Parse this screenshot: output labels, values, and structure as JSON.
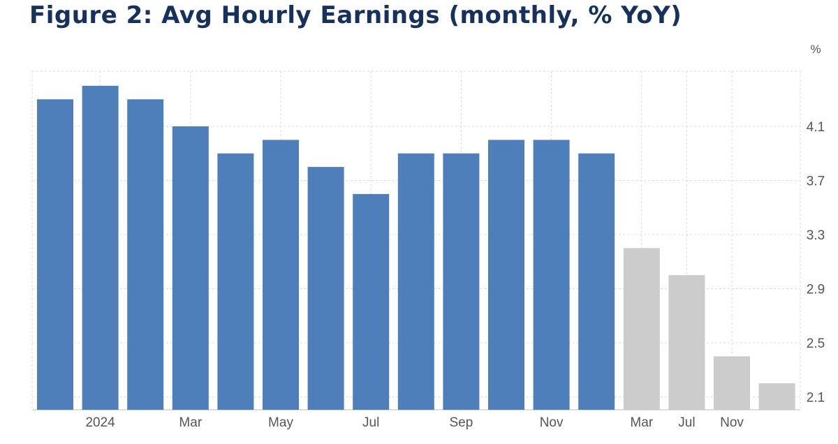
{
  "chart_data": {
    "type": "bar",
    "title": "Figure 2: Avg Hourly Earnings (monthly, % YoY)",
    "unit_label": "%",
    "xlabel": "",
    "ylabel": "",
    "ylim": [
      2.0,
      4.6
    ],
    "y_ticks": [
      4.1,
      3.7,
      3.3,
      2.9,
      2.5,
      2.1
    ],
    "x_tick_labels": [
      {
        "label": "2024",
        "index": 1
      },
      {
        "label": "Mar",
        "index": 3
      },
      {
        "label": "May",
        "index": 5
      },
      {
        "label": "Jul",
        "index": 7
      },
      {
        "label": "Sep",
        "index": 9
      },
      {
        "label": "Nov",
        "index": 11
      },
      {
        "label": "Mar",
        "index": 13
      },
      {
        "label": "Jul",
        "index": 14
      },
      {
        "label": "Nov",
        "index": 15
      }
    ],
    "values": [
      4.3,
      4.4,
      4.3,
      4.1,
      3.9,
      4.0,
      3.8,
      3.6,
      3.9,
      3.9,
      4.0,
      4.0,
      3.9,
      3.2,
      3.0,
      2.4,
      2.2
    ],
    "colors": {
      "actual": "#4f7fba",
      "forecast": "#cccccc",
      "grid": "#dcdcdc"
    },
    "series": [
      {
        "range": [
          0,
          12
        ],
        "color_key": "actual"
      },
      {
        "range": [
          13,
          16
        ],
        "color_key": "forecast"
      }
    ],
    "grid": true
  }
}
